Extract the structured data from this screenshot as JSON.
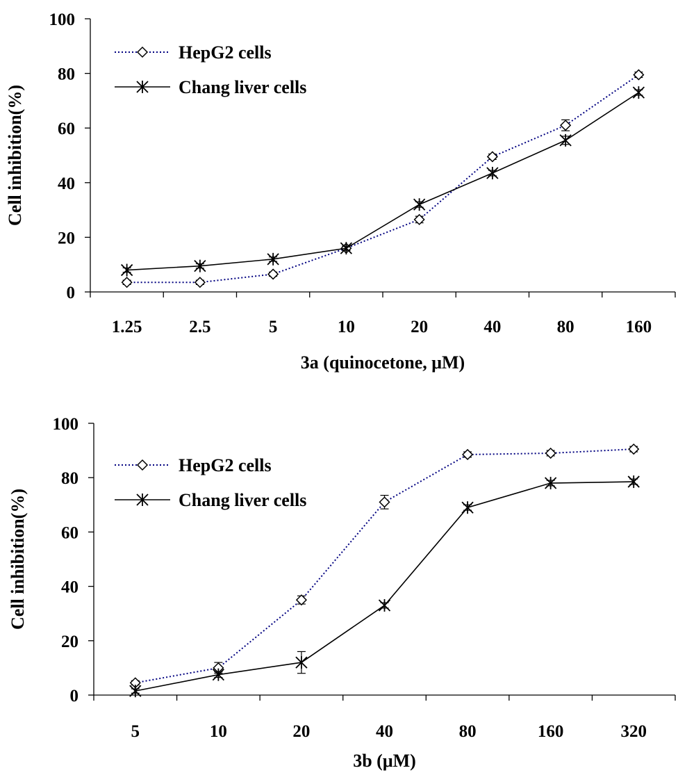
{
  "chart_data": [
    {
      "type": "line",
      "title": "",
      "xlabel": "3a (quinocetone, μM)",
      "ylabel": "Cell inhibition(%)",
      "categories": [
        "1.25",
        "2.5",
        "5",
        "10",
        "20",
        "40",
        "80",
        "160"
      ],
      "ylim": [
        0,
        100
      ],
      "yticks": [
        "0",
        "20",
        "40",
        "60",
        "80",
        "100"
      ],
      "grid": false,
      "legend_position": "top-left",
      "series": [
        {
          "name": "HepG2 cells",
          "style": "dotted",
          "marker": "diamond",
          "color": "#000080",
          "values": [
            3.5,
            3.5,
            6.5,
            16.0,
            26.5,
            49.5,
            61.0,
            79.5
          ],
          "errors": [
            0.8,
            0.8,
            0.8,
            0.8,
            1.2,
            1.0,
            2.0,
            1.0
          ]
        },
        {
          "name": "Chang liver cells",
          "style": "solid",
          "marker": "asterisk",
          "color": "#000000",
          "values": [
            8.0,
            9.5,
            12.0,
            16.0,
            32.0,
            43.5,
            55.5,
            73.0
          ],
          "errors": [
            0.8,
            0.8,
            0.8,
            0.8,
            1.0,
            1.0,
            1.5,
            1.0
          ]
        }
      ]
    },
    {
      "type": "line",
      "title": "",
      "xlabel": "3b (μM)",
      "ylabel": "Cell inhibition(%)",
      "categories": [
        "5",
        "10",
        "20",
        "40",
        "80",
        "160",
        "320"
      ],
      "ylim": [
        0,
        100
      ],
      "yticks": [
        "0",
        "20",
        "40",
        "60",
        "80",
        "100"
      ],
      "grid": false,
      "legend_position": "top-left",
      "series": [
        {
          "name": "HepG2 cells",
          "style": "dotted",
          "marker": "diamond",
          "color": "#000080",
          "values": [
            4.5,
            10.0,
            35.0,
            71.0,
            88.5,
            89.0,
            90.5
          ],
          "errors": [
            0.8,
            2.0,
            1.5,
            2.5,
            1.0,
            1.0,
            1.0
          ]
        },
        {
          "name": "Chang liver cells",
          "style": "solid",
          "marker": "asterisk",
          "color": "#000000",
          "values": [
            1.5,
            7.5,
            12.0,
            33.0,
            69.0,
            78.0,
            78.5
          ],
          "errors": [
            0.8,
            1.0,
            4.0,
            1.0,
            1.0,
            1.0,
            1.0
          ]
        }
      ]
    }
  ]
}
